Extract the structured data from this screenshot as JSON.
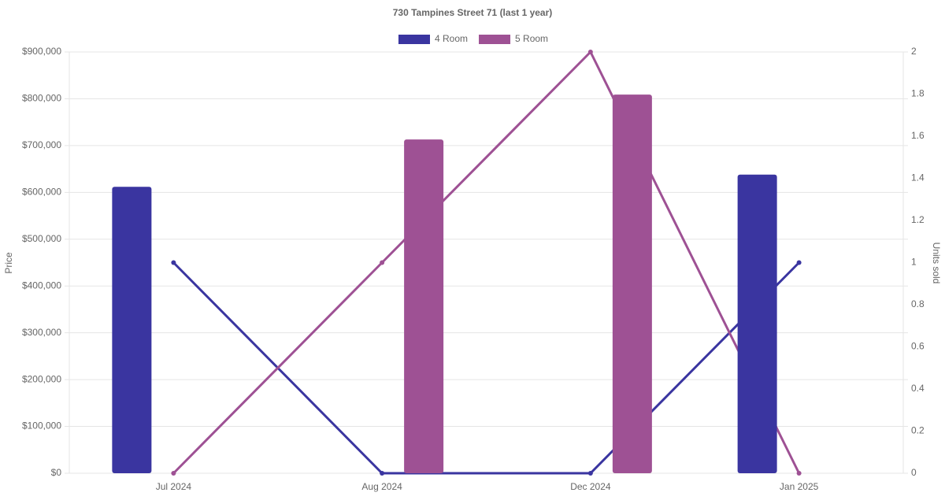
{
  "chart_data": {
    "type": "bar",
    "title": "730 Tampines Street 71 (last 1 year)",
    "categories": [
      "Jul 2024",
      "Aug 2024",
      "Dec 2024",
      "Jan 2025"
    ],
    "series": [
      {
        "name": "4 Room",
        "color": "#3a35a0",
        "values": [
          612000,
          null,
          null,
          638000
        ]
      },
      {
        "name": "5 Room",
        "color": "#9e5194",
        "values": [
          null,
          713000,
          809000,
          null
        ]
      },
      {
        "type": "line",
        "axis": "y2",
        "color": "#3a35a0",
        "values": [
          1,
          0,
          0,
          1
        ]
      },
      {
        "type": "line",
        "axis": "y2",
        "color": "#9e5194",
        "values": [
          0,
          1,
          2,
          0
        ]
      }
    ],
    "y_label": "Price",
    "y2_label": "Units sold",
    "ylim": [
      0,
      900000
    ],
    "yticks": [
      {
        "value": 0,
        "label": "$0"
      },
      {
        "value": 100000,
        "label": "$100,000"
      },
      {
        "value": 200000,
        "label": "$200,000"
      },
      {
        "value": 300000,
        "label": "$300,000"
      },
      {
        "value": 400000,
        "label": "$400,000"
      },
      {
        "value": 500000,
        "label": "$500,000"
      },
      {
        "value": 600000,
        "label": "$600,000"
      },
      {
        "value": 700000,
        "label": "$700,000"
      },
      {
        "value": 800000,
        "label": "$800,000"
      },
      {
        "value": 900000,
        "label": "$900,000"
      }
    ],
    "y2lim": [
      0,
      2
    ],
    "y2ticks": [
      0,
      0.2,
      0.4,
      0.6,
      0.8,
      1,
      1.2,
      1.4,
      1.6,
      1.8,
      2
    ],
    "grid": true
  }
}
